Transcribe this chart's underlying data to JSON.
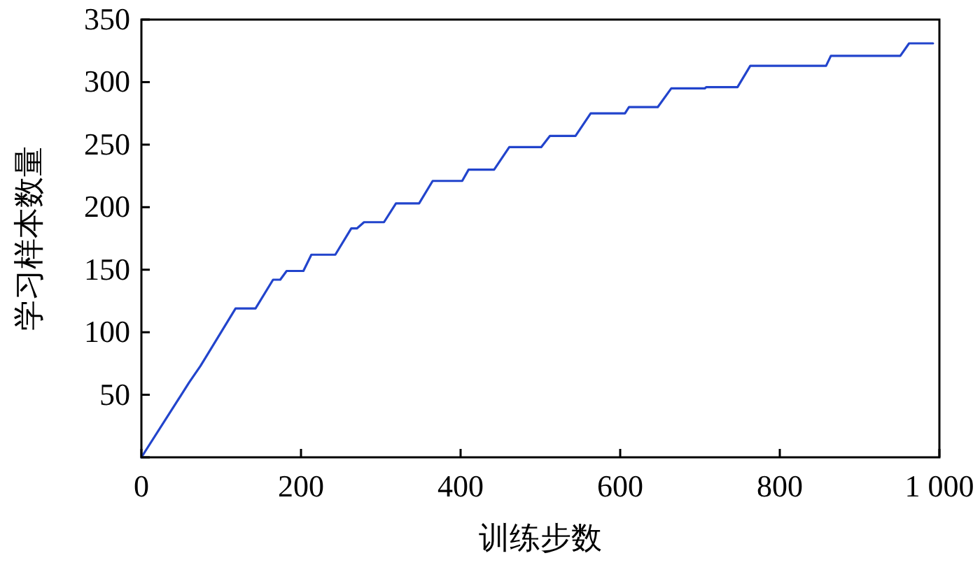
{
  "chart_data": {
    "type": "line",
    "xlabel": "训练步数",
    "ylabel": "学习样本数量",
    "x": [
      0,
      60,
      74,
      118,
      143,
      165,
      174,
      182,
      203,
      213,
      243,
      263,
      270,
      279,
      304,
      319,
      348,
      365,
      402,
      410,
      442,
      461,
      489,
      501,
      512,
      544,
      563,
      606,
      611,
      647,
      664,
      706,
      708,
      747,
      763,
      858,
      864,
      951,
      962,
      992
    ],
    "series": [
      {
        "color": "#2244cc",
        "values": [
          0,
          60,
          73,
          119,
          119,
          142,
          142,
          149,
          149,
          162,
          162,
          183,
          183,
          188,
          188,
          203,
          203,
          221,
          221,
          230,
          230,
          248,
          248,
          248,
          257,
          257,
          275,
          275,
          280,
          280,
          295,
          295,
          296,
          296,
          313,
          313,
          321,
          321,
          331,
          331
        ]
      }
    ],
    "xlim": [
      0,
      1000
    ],
    "ylim": [
      0,
      350
    ],
    "xticks": [
      0,
      200,
      400,
      600,
      800,
      {
        "value": 1000,
        "label": "1 000"
      }
    ],
    "yticks": [
      {
        "value": 0,
        "label": null
      },
      50,
      100,
      150,
      200,
      250,
      300,
      350
    ],
    "grid": false,
    "marker": "none",
    "line_style": "solid"
  }
}
